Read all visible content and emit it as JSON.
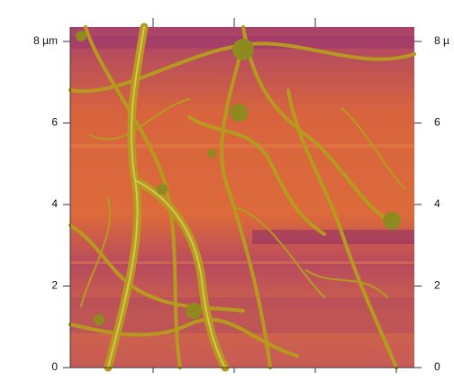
{
  "image": {
    "left_axis_labels": [
      "8 µm",
      "6",
      "4",
      "2",
      "0"
    ],
    "right_axis_labels": [
      "8 µ",
      "6",
      "4",
      "2",
      "0"
    ]
  }
}
